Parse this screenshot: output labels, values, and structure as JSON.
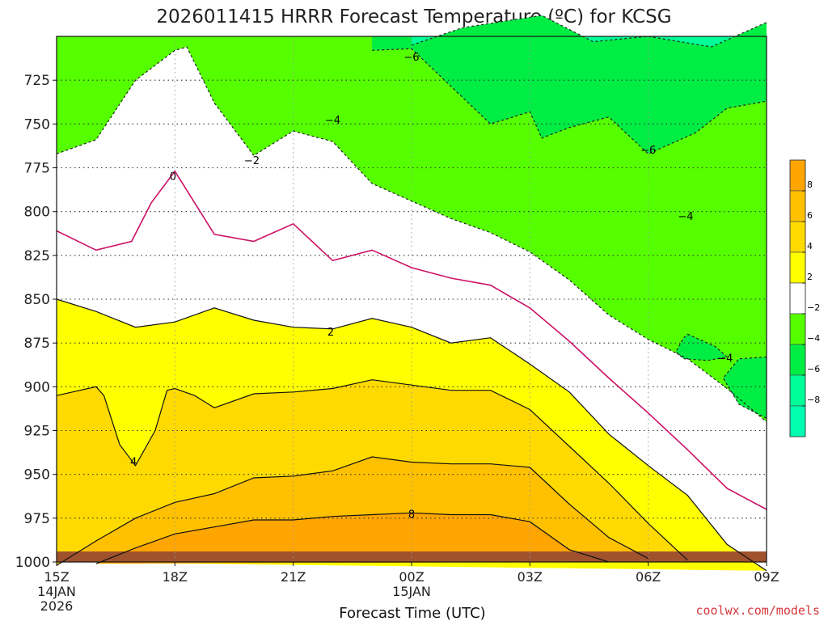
{
  "chart_data": {
    "type": "contour",
    "title": "2026011415 HRRR Forecast Temperature (ºC) for KCSG",
    "xlabel": "Forecast Time (UTC)",
    "credit": "coolwx.com/models",
    "x_ticks": [
      {
        "hour": -3,
        "label": "15Z",
        "sub1": "14JAN",
        "sub2": "2026"
      },
      {
        "hour": 0,
        "label": "18Z",
        "sub1": "",
        "sub2": ""
      },
      {
        "hour": 3,
        "label": "21Z",
        "sub1": "",
        "sub2": ""
      },
      {
        "hour": 6,
        "label": "00Z",
        "sub1": "15JAN",
        "sub2": ""
      },
      {
        "hour": 9,
        "label": "03Z",
        "sub1": "",
        "sub2": ""
      },
      {
        "hour": 12,
        "label": "06Z",
        "sub1": "",
        "sub2": ""
      },
      {
        "hour": 15,
        "label": "09Z",
        "sub1": "",
        "sub2": ""
      }
    ],
    "y_ticks": [
      725,
      750,
      775,
      800,
      825,
      850,
      875,
      900,
      925,
      950,
      975,
      1000
    ],
    "xlim": [
      -3,
      15
    ],
    "ylim": [
      1000,
      700
    ],
    "colorbar": {
      "labels": [
        "8",
        "6",
        "4",
        "2",
        "-2",
        "-4",
        "-6",
        "-8"
      ],
      "colors": [
        "#FFA500",
        "#FFC000",
        "#FFDA00",
        "#FFFF00",
        "#FFFFFF",
        "#55FF00",
        "#00EE44",
        "#00FF99",
        "#00FFB0"
      ]
    },
    "colors": {
      "warm8": "#FFA500",
      "warm6": "#FFC000",
      "warm4": "#FFDA00",
      "warm2": "#FFFF00",
      "neutral": "#FFFFFF",
      "cool2": "#55FF00",
      "cool4": "#00EE44",
      "cool6": "#00FF99",
      "ground": "#A0522D",
      "zero_line": "#CC1166"
    },
    "contour_labels": [
      {
        "text": "−6",
        "hour": 6,
        "p": 712
      },
      {
        "text": "−4",
        "hour": 4,
        "p": 748
      },
      {
        "text": "−2",
        "hour": 1.95,
        "p": 771
      },
      {
        "text": "0",
        "hour": -0.05,
        "p": 780
      },
      {
        "text": "2",
        "hour": 3.95,
        "p": 869
      },
      {
        "text": "4",
        "hour": -1.05,
        "p": 943
      },
      {
        "text": "8",
        "hour": 6,
        "p": 973
      },
      {
        "text": "−6",
        "hour": 12,
        "p": 765
      },
      {
        "text": "−4",
        "hour": 12.95,
        "p": 803
      },
      {
        "text": "−4",
        "hour": 13.95,
        "p": 884
      }
    ],
    "isotherms": {
      "minus6": [
        [
          6,
          705
        ],
        [
          7.3,
          695
        ],
        [
          9.3,
          688
        ],
        [
          10.6,
          703
        ],
        [
          12,
          700
        ],
        [
          13.6,
          706
        ],
        [
          15,
          692
        ]
      ],
      "minus4": [
        [
          5,
          708
        ],
        [
          6,
          707
        ],
        [
          7.3,
          735
        ],
        [
          8,
          750
        ],
        [
          9,
          743
        ],
        [
          9.3,
          758
        ],
        [
          10,
          752
        ],
        [
          11,
          746
        ],
        [
          12,
          767
        ],
        [
          13.2,
          755
        ],
        [
          14,
          741
        ],
        [
          15,
          737
        ]
      ],
      "minus2": [
        [
          -3,
          767
        ],
        [
          -2,
          759
        ],
        [
          -1,
          725
        ],
        [
          0,
          708
        ],
        [
          0.3,
          706
        ],
        [
          1,
          738
        ],
        [
          2,
          768
        ],
        [
          3,
          754
        ],
        [
          4,
          760
        ],
        [
          5,
          784
        ],
        [
          6,
          794
        ],
        [
          7,
          804
        ],
        [
          8,
          812
        ],
        [
          9,
          823
        ],
        [
          10,
          839
        ],
        [
          11,
          859
        ],
        [
          12,
          873
        ],
        [
          13,
          884
        ],
        [
          14,
          901
        ],
        [
          15,
          920
        ]
      ],
      "zero": [
        [
          -3,
          811
        ],
        [
          -2,
          822
        ],
        [
          -1.1,
          817
        ],
        [
          -0.6,
          795
        ],
        [
          0,
          777
        ],
        [
          1,
          813
        ],
        [
          2,
          817
        ],
        [
          3,
          807
        ],
        [
          4,
          828
        ],
        [
          5,
          822
        ],
        [
          6,
          832
        ],
        [
          7,
          838
        ],
        [
          8,
          842
        ],
        [
          9,
          855
        ],
        [
          10,
          874
        ],
        [
          11,
          895
        ],
        [
          12,
          915
        ],
        [
          13,
          936
        ],
        [
          14,
          958
        ],
        [
          15,
          970
        ]
      ],
      "two": [
        [
          -3,
          850
        ],
        [
          -2,
          857
        ],
        [
          -1,
          866
        ],
        [
          0,
          863
        ],
        [
          1,
          855
        ],
        [
          2,
          862
        ],
        [
          3,
          866
        ],
        [
          4,
          867
        ],
        [
          5,
          861
        ],
        [
          6,
          866
        ],
        [
          7,
          875
        ],
        [
          8,
          872
        ],
        [
          9,
          887
        ],
        [
          10,
          903
        ],
        [
          11,
          927
        ],
        [
          12,
          945
        ],
        [
          13,
          962
        ],
        [
          14,
          990
        ],
        [
          15,
          1005
        ]
      ],
      "four": [
        [
          -3,
          905
        ],
        [
          -2,
          900
        ],
        [
          -1.8,
          905
        ],
        [
          -1.4,
          933
        ],
        [
          -1,
          945
        ],
        [
          -0.5,
          925
        ],
        [
          -0.2,
          902
        ],
        [
          0,
          901
        ],
        [
          0.5,
          905
        ],
        [
          1,
          912
        ],
        [
          2,
          904
        ],
        [
          3,
          903
        ],
        [
          4,
          901
        ],
        [
          5,
          896
        ],
        [
          6,
          899
        ],
        [
          7,
          902
        ],
        [
          8,
          902
        ],
        [
          9,
          913
        ],
        [
          10,
          934
        ],
        [
          11,
          955
        ],
        [
          12,
          978
        ],
        [
          13,
          999
        ]
      ],
      "six": [
        [
          -3,
          1002
        ],
        [
          -2,
          988
        ],
        [
          -1,
          975
        ],
        [
          0,
          966
        ],
        [
          1,
          961
        ],
        [
          2,
          952
        ],
        [
          3,
          951
        ],
        [
          4,
          948
        ],
        [
          5,
          940
        ],
        [
          6,
          943
        ],
        [
          7,
          944
        ],
        [
          8,
          944
        ],
        [
          9,
          946
        ],
        [
          10,
          967
        ],
        [
          11,
          986
        ],
        [
          12,
          998
        ]
      ],
      "eight": [
        [
          -2,
          1001
        ],
        [
          -1,
          992
        ],
        [
          0,
          984
        ],
        [
          1,
          980
        ],
        [
          2,
          976
        ],
        [
          3,
          976
        ],
        [
          4,
          974
        ],
        [
          5,
          973
        ],
        [
          6,
          972
        ],
        [
          7,
          973
        ],
        [
          8,
          973
        ],
        [
          9,
          977
        ],
        [
          10,
          993
        ],
        [
          11,
          1000
        ]
      ],
      "cool4_island": [
        [
          13,
          870
        ],
        [
          13.7,
          877
        ],
        [
          14,
          883
        ],
        [
          13.5,
          885
        ],
        [
          12.9,
          884
        ],
        [
          12.7,
          880
        ],
        [
          12.9,
          872
        ]
      ],
      "cool4_edge": [
        [
          15,
          883
        ],
        [
          14.3,
          884
        ],
        [
          13.9,
          895
        ],
        [
          14.3,
          910
        ],
        [
          15,
          918
        ]
      ]
    }
  }
}
